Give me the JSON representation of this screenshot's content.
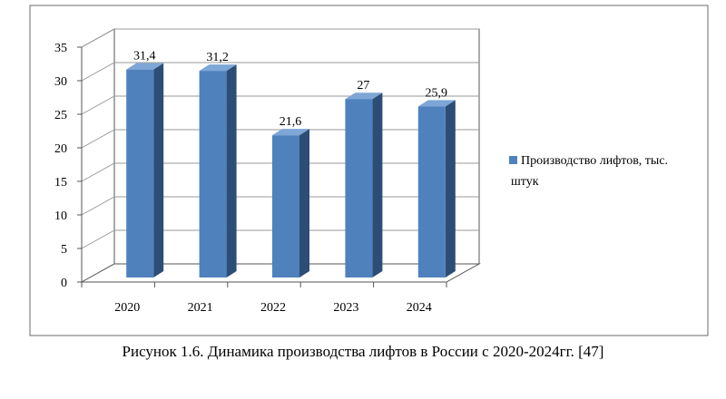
{
  "chart_data": {
    "type": "bar",
    "categories": [
      "2020",
      "2021",
      "2022",
      "2023",
      "2024"
    ],
    "series": [
      {
        "name": "Производство лифтов, тыс. штук",
        "values": [
          31.4,
          31.2,
          21.6,
          27,
          25.9
        ]
      }
    ],
    "data_labels": [
      "31,4",
      "31,2",
      "21,6",
      "27",
      "25,9"
    ],
    "yticks": [
      "0",
      "5",
      "10",
      "15",
      "20",
      "25",
      "30",
      "35"
    ],
    "ylim": [
      0,
      35
    ],
    "grid": true,
    "legend_position": "right",
    "legend_lines": [
      "Производство лифтов, тыс.",
      "штук"
    ],
    "style": "3d-column",
    "colors": {
      "bar_front": "#4f81bd",
      "bar_side": "#2c4d75",
      "bar_top": "#7ea6d6",
      "grid": "#9a9a9a",
      "frame": "#555555"
    }
  },
  "caption": "Рисунок 1.6. Динамика производства лифтов в России с 2020-2024гг. [47]"
}
